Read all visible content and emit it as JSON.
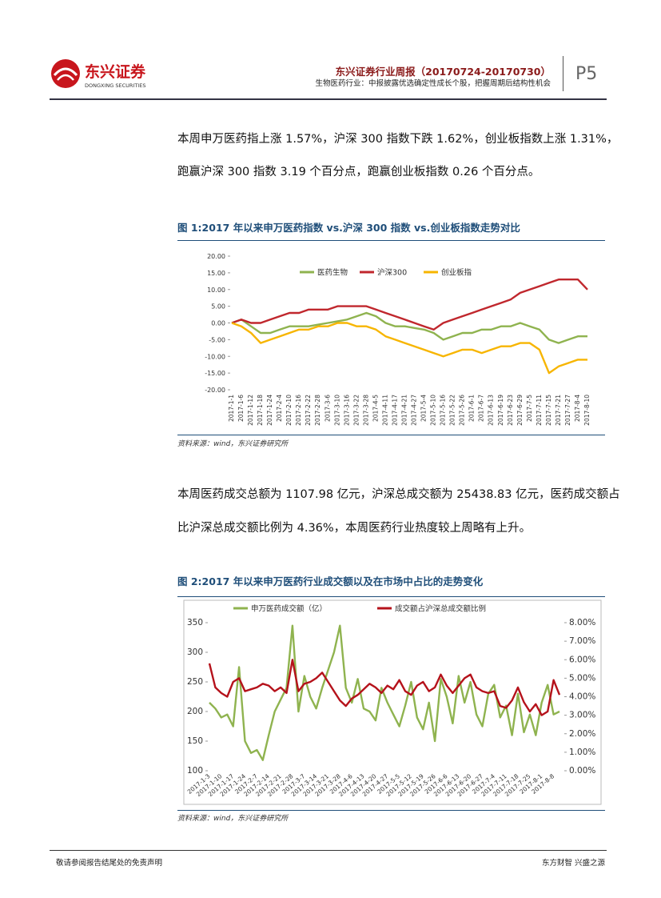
{
  "header": {
    "logo_text": "东兴证券",
    "logo_sub": "DONGXING SECURITIES",
    "title": "东兴证券行业周报（20170724-20170730）",
    "subtitle": "生物医药行业：中报披露优选确定性成长个股，把握周期后结构性机会",
    "page": "P5"
  },
  "paragraphs": [
    [
      "本周申万医药指上涨 1.57%，沪深 300 指数下跌 1.62%，创业板指数上涨 1.31%，",
      "跑赢沪深 300 指数 3.19 个百分点，跑赢创业板指数 0.26 个百分点。"
    ],
    [
      "本周医药成交总额为 1107.98 亿元，沪深总成交额为 25438.83 亿元，医药成交额占",
      "比沪深总成交额比例为 4.36%，本周医药行业热度较上周略有上升。"
    ]
  ],
  "chart_data": [
    {
      "type": "line",
      "title": "图 1:2017 年以来申万医药指数 vs.沪深 300 指数 vs.创业板指数走势对比",
      "source": "资料来源：wind，东兴证券研究所",
      "categories": [
        "2017-1-1",
        "2017-1-6",
        "2017-1-12",
        "2017-1-18",
        "2017-1-24",
        "2017-2-4",
        "2017-2-10",
        "2017-2-16",
        "2017-2-22",
        "2017-2-28",
        "2017-3-6",
        "2017-3-10",
        "2017-3-16",
        "2017-3-22",
        "2017-3-28",
        "2017-4-5",
        "2017-4-11",
        "2017-4-17",
        "2017-4-21",
        "2017-4-27",
        "2017-5-4",
        "2017-5-10",
        "2017-5-16",
        "2017-5-22",
        "2017-5-26",
        "2017-6-1",
        "2017-6-7",
        "2017-6-13",
        "2017-6-19",
        "2017-6-23",
        "2017-6-29",
        "2017-7-5",
        "2017-7-11",
        "2017-7-15",
        "2017-7-21",
        "2017-7-27",
        "2017-8-4",
        "2017-8-10"
      ],
      "series": [
        {
          "name": "医药生物",
          "color": "#8fb34f",
          "values": [
            0,
            1,
            -1,
            -3,
            -3,
            -2,
            -1,
            -1,
            -1,
            -0.5,
            0,
            0.5,
            1,
            2,
            3,
            2,
            0,
            -1,
            -1,
            -1.5,
            -2,
            -3,
            -5,
            -4,
            -3,
            -3,
            -2,
            -2,
            -1,
            -1,
            0,
            -1,
            -2,
            -5,
            -6,
            -5,
            -4,
            -4
          ]
        },
        {
          "name": "沪深300",
          "color": "#c0272d",
          "values": [
            0,
            1,
            0,
            0,
            1,
            2,
            3,
            3,
            4,
            4,
            4,
            5,
            5,
            5,
            5,
            4,
            3,
            2,
            1,
            0,
            -1,
            -2,
            0,
            1,
            2,
            3,
            4,
            5,
            6,
            7,
            9,
            10,
            11,
            12,
            13,
            13,
            13,
            10
          ]
        },
        {
          "name": "创业板指",
          "color": "#f7b500",
          "values": [
            0,
            -1,
            -3,
            -6,
            -5,
            -4,
            -3,
            -2,
            -2,
            -1,
            -1,
            0,
            0,
            -1,
            -1,
            -2,
            -4,
            -5,
            -6,
            -7,
            -8,
            -9,
            -10,
            -9,
            -8,
            -8,
            -9,
            -8,
            -7,
            -7,
            -6,
            -6,
            -8,
            -15,
            -13,
            -12,
            -11,
            -11
          ]
        }
      ],
      "ylim": [
        -20,
        20
      ],
      "yticks": [
        {
          "value": -20,
          "label": "-20.00"
        },
        {
          "value": -15,
          "label": "-15.00"
        },
        {
          "value": -10,
          "label": "-10.00"
        },
        {
          "value": -5,
          "label": "-5.00"
        },
        {
          "value": 0,
          "label": "0.00"
        },
        {
          "value": 5,
          "label": "5.00"
        },
        {
          "value": 10,
          "label": "10.00"
        },
        {
          "value": 15,
          "label": "15.00"
        },
        {
          "value": 20,
          "label": "20.00"
        }
      ],
      "grid": false
    },
    {
      "type": "line",
      "title": "图 2:2017 年以来申万医药行业成交额以及在市场中占比的走势变化",
      "source": "资料来源：wind，东兴证券研究所",
      "categories": [
        "2017-1-3",
        null,
        "2017-1-10",
        null,
        "2017-1-17",
        null,
        "2017-1-24",
        null,
        "2017-2-7",
        null,
        "2017-2-14",
        null,
        "2017-2-21",
        null,
        "2017-2-28",
        null,
        "2017-3-7",
        null,
        "2017-3-14",
        null,
        "2017-3-21",
        null,
        "2017-3-28",
        null,
        "2017-4-6",
        null,
        "2017-4-13",
        null,
        "2017-4-20",
        null,
        "2017-4-27",
        null,
        "2017-5-5",
        null,
        "2017-5-12",
        null,
        "2017-5-19",
        null,
        "2017-5-26",
        null,
        "2017-6-6",
        null,
        "2017-6-13",
        null,
        "2017-6-20",
        null,
        "2017-6-27",
        null,
        "2017-7-4",
        null,
        "2017-7-11",
        null,
        "2017-7-18",
        null,
        "2017-7-25",
        null,
        "2017-8-1",
        null,
        "2017-8-8",
        null
      ],
      "series": [
        {
          "name": "申万医药成交额（亿）",
          "color": "#8fb34f",
          "values": [
            215,
            205,
            190,
            195,
            175,
            275,
            150,
            130,
            135,
            118,
            160,
            200,
            220,
            240,
            345,
            200,
            260,
            225,
            205,
            240,
            270,
            300,
            345,
            240,
            215,
            255,
            205,
            200,
            185,
            240,
            215,
            195,
            175,
            210,
            250,
            190,
            170,
            215,
            150,
            255,
            225,
            180,
            260,
            215,
            250,
            195,
            175,
            230,
            245,
            190,
            210,
            160,
            230,
            165,
            195,
            160,
            215,
            245,
            195,
            200
          ]
        },
        {
          "name": "成交额占沪深总成交额比例",
          "color": "#b5121b",
          "axis": "y2",
          "values": [
            5.8,
            4.5,
            4.2,
            4.0,
            4.8,
            5.0,
            4.3,
            4.4,
            4.5,
            4.7,
            4.6,
            4.3,
            4.5,
            4.2,
            6.0,
            4.3,
            4.7,
            4.8,
            5.0,
            5.3,
            4.8,
            4.3,
            3.8,
            3.5,
            3.9,
            4.1,
            4.4,
            4.7,
            4.5,
            4.2,
            4.6,
            4.4,
            4.9,
            4.3,
            4.1,
            4.6,
            4.8,
            4.3,
            4.5,
            5.2,
            4.6,
            4.2,
            4.6,
            5.0,
            5.2,
            4.5,
            4.3,
            4.2,
            4.3,
            3.5,
            3.4,
            3.8,
            4.5,
            3.7,
            3.2,
            3.6,
            3.0,
            3.2,
            4.9,
            4.1
          ]
        }
      ],
      "ylim": [
        100,
        350
      ],
      "yticks": [
        100,
        150,
        200,
        250,
        300,
        350
      ],
      "y2lim": [
        0,
        8
      ],
      "y2ticks": [
        {
          "value": 0,
          "label": "0.00%"
        },
        {
          "value": 1,
          "label": "1.00%"
        },
        {
          "value": 2,
          "label": "2.00%"
        },
        {
          "value": 3,
          "label": "3.00%"
        },
        {
          "value": 4,
          "label": "4.00%"
        },
        {
          "value": 5,
          "label": "5.00%"
        },
        {
          "value": 6,
          "label": "6.00%"
        },
        {
          "value": 7,
          "label": "7.00%"
        },
        {
          "value": 8,
          "label": "8.00%"
        }
      ],
      "grid": false
    }
  ],
  "footer": {
    "left": "敬请参阅报告结尾处的免责声明",
    "right": "东方财智 兴盛之源"
  }
}
